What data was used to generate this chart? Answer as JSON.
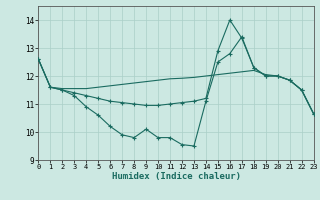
{
  "xlabel": "Humidex (Indice chaleur)",
  "background_color": "#cce8e2",
  "grid_color": "#aacfc8",
  "line_color": "#1a6b60",
  "xlim": [
    0,
    23
  ],
  "ylim": [
    9,
    14.5
  ],
  "yticks": [
    9,
    10,
    11,
    12,
    13,
    14
  ],
  "xticks": [
    0,
    1,
    2,
    3,
    4,
    5,
    6,
    7,
    8,
    9,
    10,
    11,
    12,
    13,
    14,
    15,
    16,
    17,
    18,
    19,
    20,
    21,
    22,
    23
  ],
  "line1_x": [
    0,
    1,
    2,
    3,
    4,
    5,
    6,
    7,
    8,
    9,
    10,
    11,
    12,
    13,
    14,
    15,
    16,
    17,
    18,
    19,
    20,
    21,
    22,
    23
  ],
  "line1_y": [
    12.6,
    11.6,
    11.5,
    11.3,
    10.9,
    10.6,
    10.2,
    9.9,
    9.8,
    10.1,
    9.8,
    9.8,
    9.55,
    9.5,
    11.1,
    12.5,
    12.8,
    13.4,
    12.3,
    12.0,
    12.0,
    11.85,
    11.5,
    10.65
  ],
  "line2_x": [
    0,
    1,
    2,
    3,
    4,
    5,
    6,
    7,
    8,
    9,
    10,
    11,
    12,
    13,
    14,
    15,
    16,
    17,
    18,
    19,
    20,
    21,
    22,
    23
  ],
  "line2_y": [
    12.6,
    11.6,
    11.55,
    11.55,
    11.55,
    11.6,
    11.65,
    11.7,
    11.75,
    11.8,
    11.85,
    11.9,
    11.92,
    11.95,
    12.0,
    12.05,
    12.1,
    12.15,
    12.2,
    12.05,
    12.0,
    11.85,
    11.5,
    10.65
  ],
  "line3_x": [
    0,
    1,
    2,
    3,
    4,
    5,
    6,
    7,
    8,
    9,
    10,
    11,
    12,
    13,
    14,
    15,
    16,
    17,
    18,
    19,
    20,
    21,
    22,
    23
  ],
  "line3_y": [
    12.6,
    11.6,
    11.5,
    11.4,
    11.3,
    11.2,
    11.1,
    11.05,
    11.0,
    10.95,
    10.95,
    11.0,
    11.05,
    11.1,
    11.2,
    12.9,
    14.0,
    13.35,
    12.3,
    12.0,
    12.0,
    11.85,
    11.5,
    10.65
  ]
}
